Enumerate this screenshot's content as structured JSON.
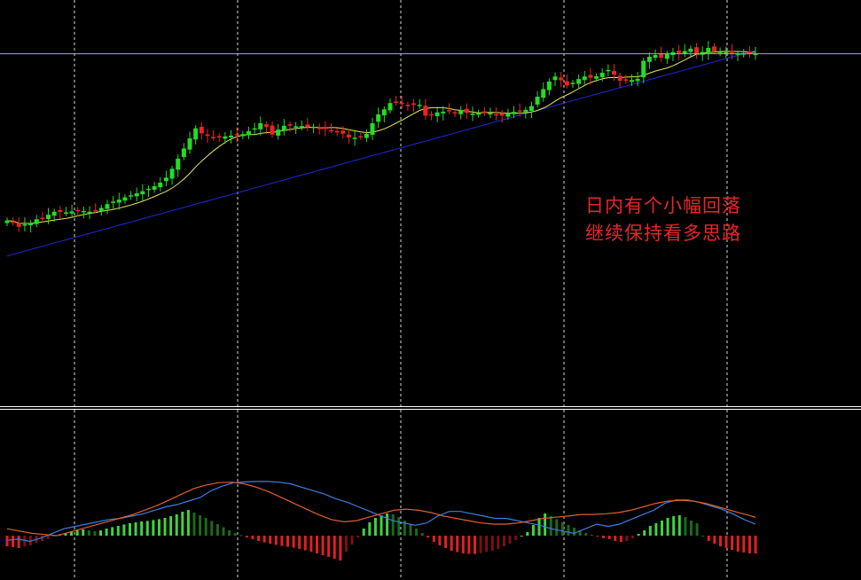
{
  "colors": {
    "background": "#000000",
    "bull_candle": "#22dd22",
    "bear_candle": "#ee2222",
    "ma_fast": "#e8e85a",
    "ma_slow": "#1c2bd8",
    "macd_line": "#3a7fe0",
    "signal_line": "#e0602a",
    "hist_pos_strong": "#3ed43e",
    "hist_pos_weak": "#1a6a1a",
    "hist_neg_strong": "#e02020",
    "hist_neg_weak": "#7a1010",
    "grid": "#ffffff",
    "annotation": "#e8262a",
    "price_line": "#9aa8d8"
  },
  "annotation": {
    "line1": "日内有个小幅回落",
    "line2": "继续保持看多思路"
  },
  "chart_data": [
    {
      "type": "candlestick",
      "panel": "price",
      "grid": "vertical dashed",
      "ylim": [
        0,
        100
      ],
      "series": [
        {
          "name": "candles",
          "note_close_trend": [
            18,
            17.5,
            15.5,
            16.5,
            17,
            18.5,
            19,
            20.3,
            21.5,
            21.4,
            21.2,
            21.6,
            21.7,
            21.8,
            21.5,
            22,
            23,
            24.5,
            25.5,
            26.3,
            27.2,
            28,
            28.8,
            29.6,
            30.6,
            31.6,
            33,
            35,
            38.5,
            42.5,
            46.5,
            50.5,
            54.5,
            52.5,
            51.5,
            50.8,
            50.8,
            51.3,
            51.6,
            51.8,
            52.2,
            53.4,
            54.5,
            56.5,
            55,
            52,
            54,
            55.5,
            55.5,
            55.3,
            55.4,
            55,
            55.1,
            54.5,
            54.2,
            53.8,
            53,
            52.4,
            50.9,
            50.8,
            51.1,
            52.3,
            56.5,
            60,
            62,
            64.5,
            65,
            64.2,
            63.8,
            63.8,
            63.8,
            59.5,
            59.7,
            60.8,
            61.1,
            61.3,
            60.5,
            61.6,
            60.6,
            60.3,
            60.6,
            60.9,
            60.5,
            60,
            59.5,
            60.5,
            61,
            61.2,
            61.8,
            63.3,
            67,
            70,
            73,
            75,
            73.5,
            71.5,
            72.5,
            74,
            75,
            74.5,
            75.1,
            76.5,
            77.6,
            75.7,
            73.3,
            73.3,
            73.6,
            74.1,
            81.2,
            82.8,
            83.5,
            82.4,
            83.9,
            84.6,
            84.3,
            85.1,
            86,
            84,
            84.7,
            86.3,
            85,
            84.8,
            84.6,
            84.3,
            84.1,
            84.2,
            84,
            84
          ]
        }
      ]
    },
    {
      "type": "bar+line",
      "panel": "macd",
      "series": [
        {
          "name": "histogram",
          "values": [
            -6,
            -6.5,
            -7,
            -6,
            -5.5,
            -4,
            -3,
            -2,
            -0.5,
            0.8,
            1.5,
            2.5,
            3,
            3.5,
            3,
            2.5,
            3,
            4,
            4.8,
            5.5,
            6.3,
            7,
            7.5,
            8,
            8.3,
            8.8,
            9.3,
            10,
            11,
            12,
            13.5,
            14.5,
            13,
            11.5,
            10,
            8.3,
            6.5,
            4.7,
            3,
            1.5,
            0.3,
            -1,
            -2,
            -3,
            -3.8,
            -4.5,
            -5.2,
            -5.8,
            -6.3,
            -6.8,
            -7.5,
            -8.3,
            -9,
            -10,
            -11,
            -12,
            -13,
            -14,
            -9,
            -5,
            -1,
            4,
            7.5,
            10,
            11.5,
            12.5,
            12,
            10.5,
            8.5,
            6.5,
            4,
            1.5,
            -1,
            -3.5,
            -5.5,
            -7,
            -8.5,
            -9.3,
            -10,
            -10.3,
            -10.3,
            -9.8,
            -9.2,
            -8.5,
            -7.5,
            -6,
            -4.5,
            -2.5,
            0,
            2,
            6,
            10,
            12.5,
            11,
            9.3,
            7.5,
            6,
            4.5,
            3,
            1.5,
            0.5,
            -0.5,
            -1.5,
            -2,
            -3,
            -3.5,
            -3,
            -1.5,
            1,
            3,
            5.5,
            7,
            8.5,
            10,
            11,
            11.5,
            10.5,
            8.5,
            7,
            0,
            -3,
            -4.5,
            -6,
            -7,
            -8,
            -9,
            -9.5,
            -10,
            -10
          ]
        },
        {
          "name": "macd",
          "values": [
            -2,
            -1.5,
            -2.5,
            -1,
            1,
            3,
            4,
            5,
            6,
            7,
            7.5,
            8.5,
            9.5,
            11,
            12.5,
            13.5,
            15,
            16.5,
            19.5,
            21.5,
            23,
            23.3,
            23.5,
            23.5,
            23.2,
            22.5,
            21,
            19.5,
            18,
            16,
            14.5,
            12.5,
            10.5,
            8.5,
            6.5,
            5.5,
            4.5,
            5.5,
            8.5,
            10.5,
            10.5,
            9.5,
            8.5,
            7.5,
            7.5,
            6.5,
            5.5,
            4.5,
            3,
            2,
            1,
            3,
            5,
            4,
            5,
            7,
            9,
            11,
            14,
            15.5,
            15.5,
            14.5,
            13,
            11.5,
            9.5,
            7,
            5
          ]
        },
        {
          "name": "signal",
          "values": [
            3,
            2,
            1,
            0.5,
            0,
            1.5,
            3,
            4.5,
            6,
            7.5,
            9,
            11,
            13,
            15.5,
            18,
            20.5,
            22,
            23,
            23.2,
            22.5,
            21,
            19,
            16.5,
            14,
            11.5,
            9,
            7,
            6,
            6.5,
            8,
            9.5,
            11,
            11.5,
            11,
            10,
            8.5,
            7.5,
            6.5,
            5.5,
            5,
            5,
            5.5,
            6.5,
            7.5,
            8,
            8.5,
            9.2,
            9.2,
            9.5,
            10,
            11,
            12.5,
            14,
            15,
            15.3,
            15,
            14,
            12.5,
            11,
            9.5,
            8
          ]
        }
      ]
    }
  ]
}
